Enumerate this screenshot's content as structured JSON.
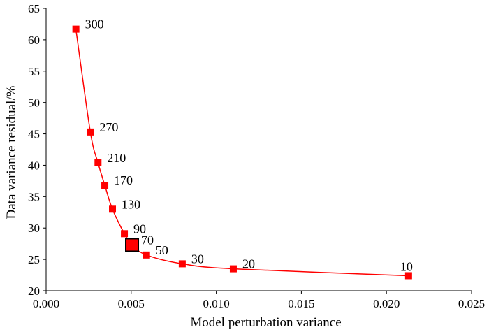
{
  "chart_data": {
    "type": "scatter",
    "xlabel": "Model perturbation variance",
    "ylabel": "Data variance residual/%",
    "xlim": [
      0,
      0.025
    ],
    "ylim": [
      20,
      65
    ],
    "x_ticks": [
      "0.000",
      "0.005",
      "0.010",
      "0.015",
      "0.020",
      "0.025"
    ],
    "y_ticks": [
      "20",
      "25",
      "30",
      "35",
      "40",
      "45",
      "50",
      "55",
      "60",
      "65"
    ],
    "grid": false,
    "series_color": "#ff0000",
    "highlight_color": "#000000",
    "points": [
      {
        "label": "300",
        "x": 0.00175,
        "y": 61.7
      },
      {
        "label": "270",
        "x": 0.0026,
        "y": 45.3
      },
      {
        "label": "210",
        "x": 0.00305,
        "y": 40.4
      },
      {
        "label": "170",
        "x": 0.00345,
        "y": 36.8
      },
      {
        "label": "130",
        "x": 0.0039,
        "y": 33.0
      },
      {
        "label": "90",
        "x": 0.0046,
        "y": 29.1
      },
      {
        "label": "70",
        "x": 0.00505,
        "y": 27.3,
        "highlight": true
      },
      {
        "label": "50",
        "x": 0.0059,
        "y": 25.7
      },
      {
        "label": "30",
        "x": 0.008,
        "y": 24.3
      },
      {
        "label": "20",
        "x": 0.011,
        "y": 23.5
      },
      {
        "label": "10",
        "x": 0.0213,
        "y": 22.4
      }
    ]
  }
}
